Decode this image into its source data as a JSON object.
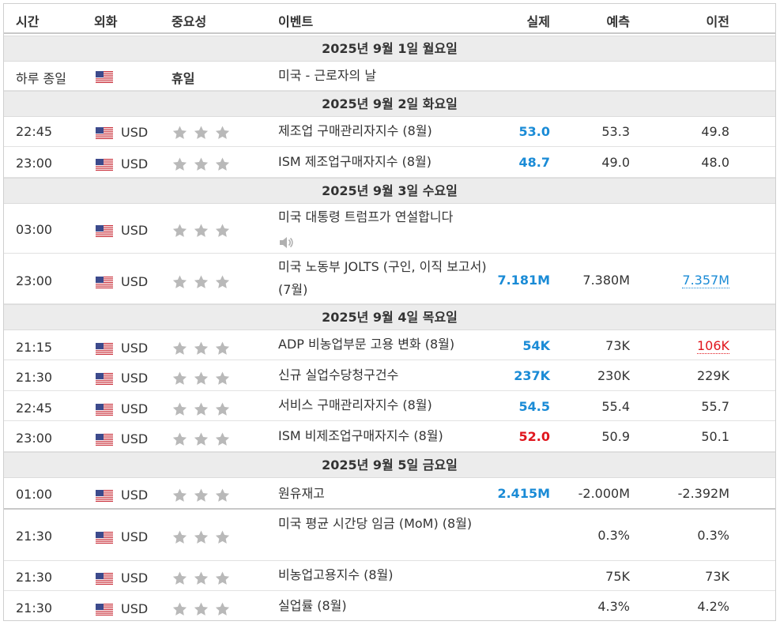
{
  "headers": {
    "time": "시간",
    "currency": "외화",
    "importance": "중요성",
    "event": "이벤트",
    "actual": "실제",
    "forecast": "예측",
    "previous": "이전"
  },
  "days": [
    "2025년 9월 1일 월요일",
    "2025년 9월 2일 화요일",
    "2025년 9월 3일 수요일",
    "2025년 9월 4일 목요일",
    "2025년 9월 5일 금요일"
  ],
  "holiday": {
    "time": "하루 종일",
    "label": "휴일",
    "event": "미국 - 근로자의 날"
  },
  "rows": [
    {
      "time": "22:45",
      "currency": "USD",
      "event": "제조업 구매관리자지수 (8월)",
      "actual": "53.0",
      "forecast": "53.3",
      "previous": "49.8",
      "stars": 3
    },
    {
      "time": "23:00",
      "currency": "USD",
      "event": "ISM 제조업구매자지수 (8월)",
      "actual": "48.7",
      "forecast": "49.0",
      "previous": "48.0",
      "stars": 3
    },
    {
      "time": "03:00",
      "currency": "USD",
      "event": "미국 대통령 트럼프가 연설합니다",
      "actual": "",
      "forecast": "",
      "previous": "",
      "stars": 3
    },
    {
      "time": "23:00",
      "currency": "USD",
      "event": "미국 노동부 JOLTS (구인, 이직 보고서) (7월)",
      "actual": "7.181M",
      "forecast": "7.380M",
      "previous": "7.357M",
      "stars": 3
    },
    {
      "time": "21:15",
      "currency": "USD",
      "event": "ADP 비농업부문 고용 변화 (8월)",
      "actual": "54K",
      "forecast": "73K",
      "previous": "106K",
      "stars": 3
    },
    {
      "time": "21:30",
      "currency": "USD",
      "event": "신규 실업수당청구건수",
      "actual": "237K",
      "forecast": "230K",
      "previous": "229K",
      "stars": 3
    },
    {
      "time": "22:45",
      "currency": "USD",
      "event": "서비스 구매관리자지수 (8월)",
      "actual": "54.5",
      "forecast": "55.4",
      "previous": "55.7",
      "stars": 3
    },
    {
      "time": "23:00",
      "currency": "USD",
      "event": "ISM 비제조업구매자지수 (8월)",
      "actual": "52.0",
      "forecast": "50.9",
      "previous": "50.1",
      "stars": 3
    },
    {
      "time": "01:00",
      "currency": "USD",
      "event": "원유재고",
      "actual": "2.415M",
      "forecast": "-2.000M",
      "previous": "-2.392M",
      "stars": 3
    },
    {
      "time": "21:30",
      "currency": "USD",
      "event": "미국 평균 시간당 임금 (MoM) (8월)",
      "actual": "",
      "forecast": "0.3%",
      "previous": "0.3%",
      "stars": 3
    },
    {
      "time": "21:30",
      "currency": "USD",
      "event": "비농업고용지수 (8월)",
      "actual": "",
      "forecast": "75K",
      "previous": "73K",
      "stars": 3
    },
    {
      "time": "21:30",
      "currency": "USD",
      "event": "실업률 (8월)",
      "actual": "",
      "forecast": "4.3%",
      "previous": "4.2%",
      "stars": 3
    }
  ],
  "colors": {
    "better": "#1a8bd6",
    "worse": "#e0161d",
    "star": "#b9b9b9",
    "day_bar": "#ececec"
  },
  "icons": {
    "flag": "us-flag-icon",
    "star": "star-icon",
    "speaker": "speaker-icon"
  }
}
